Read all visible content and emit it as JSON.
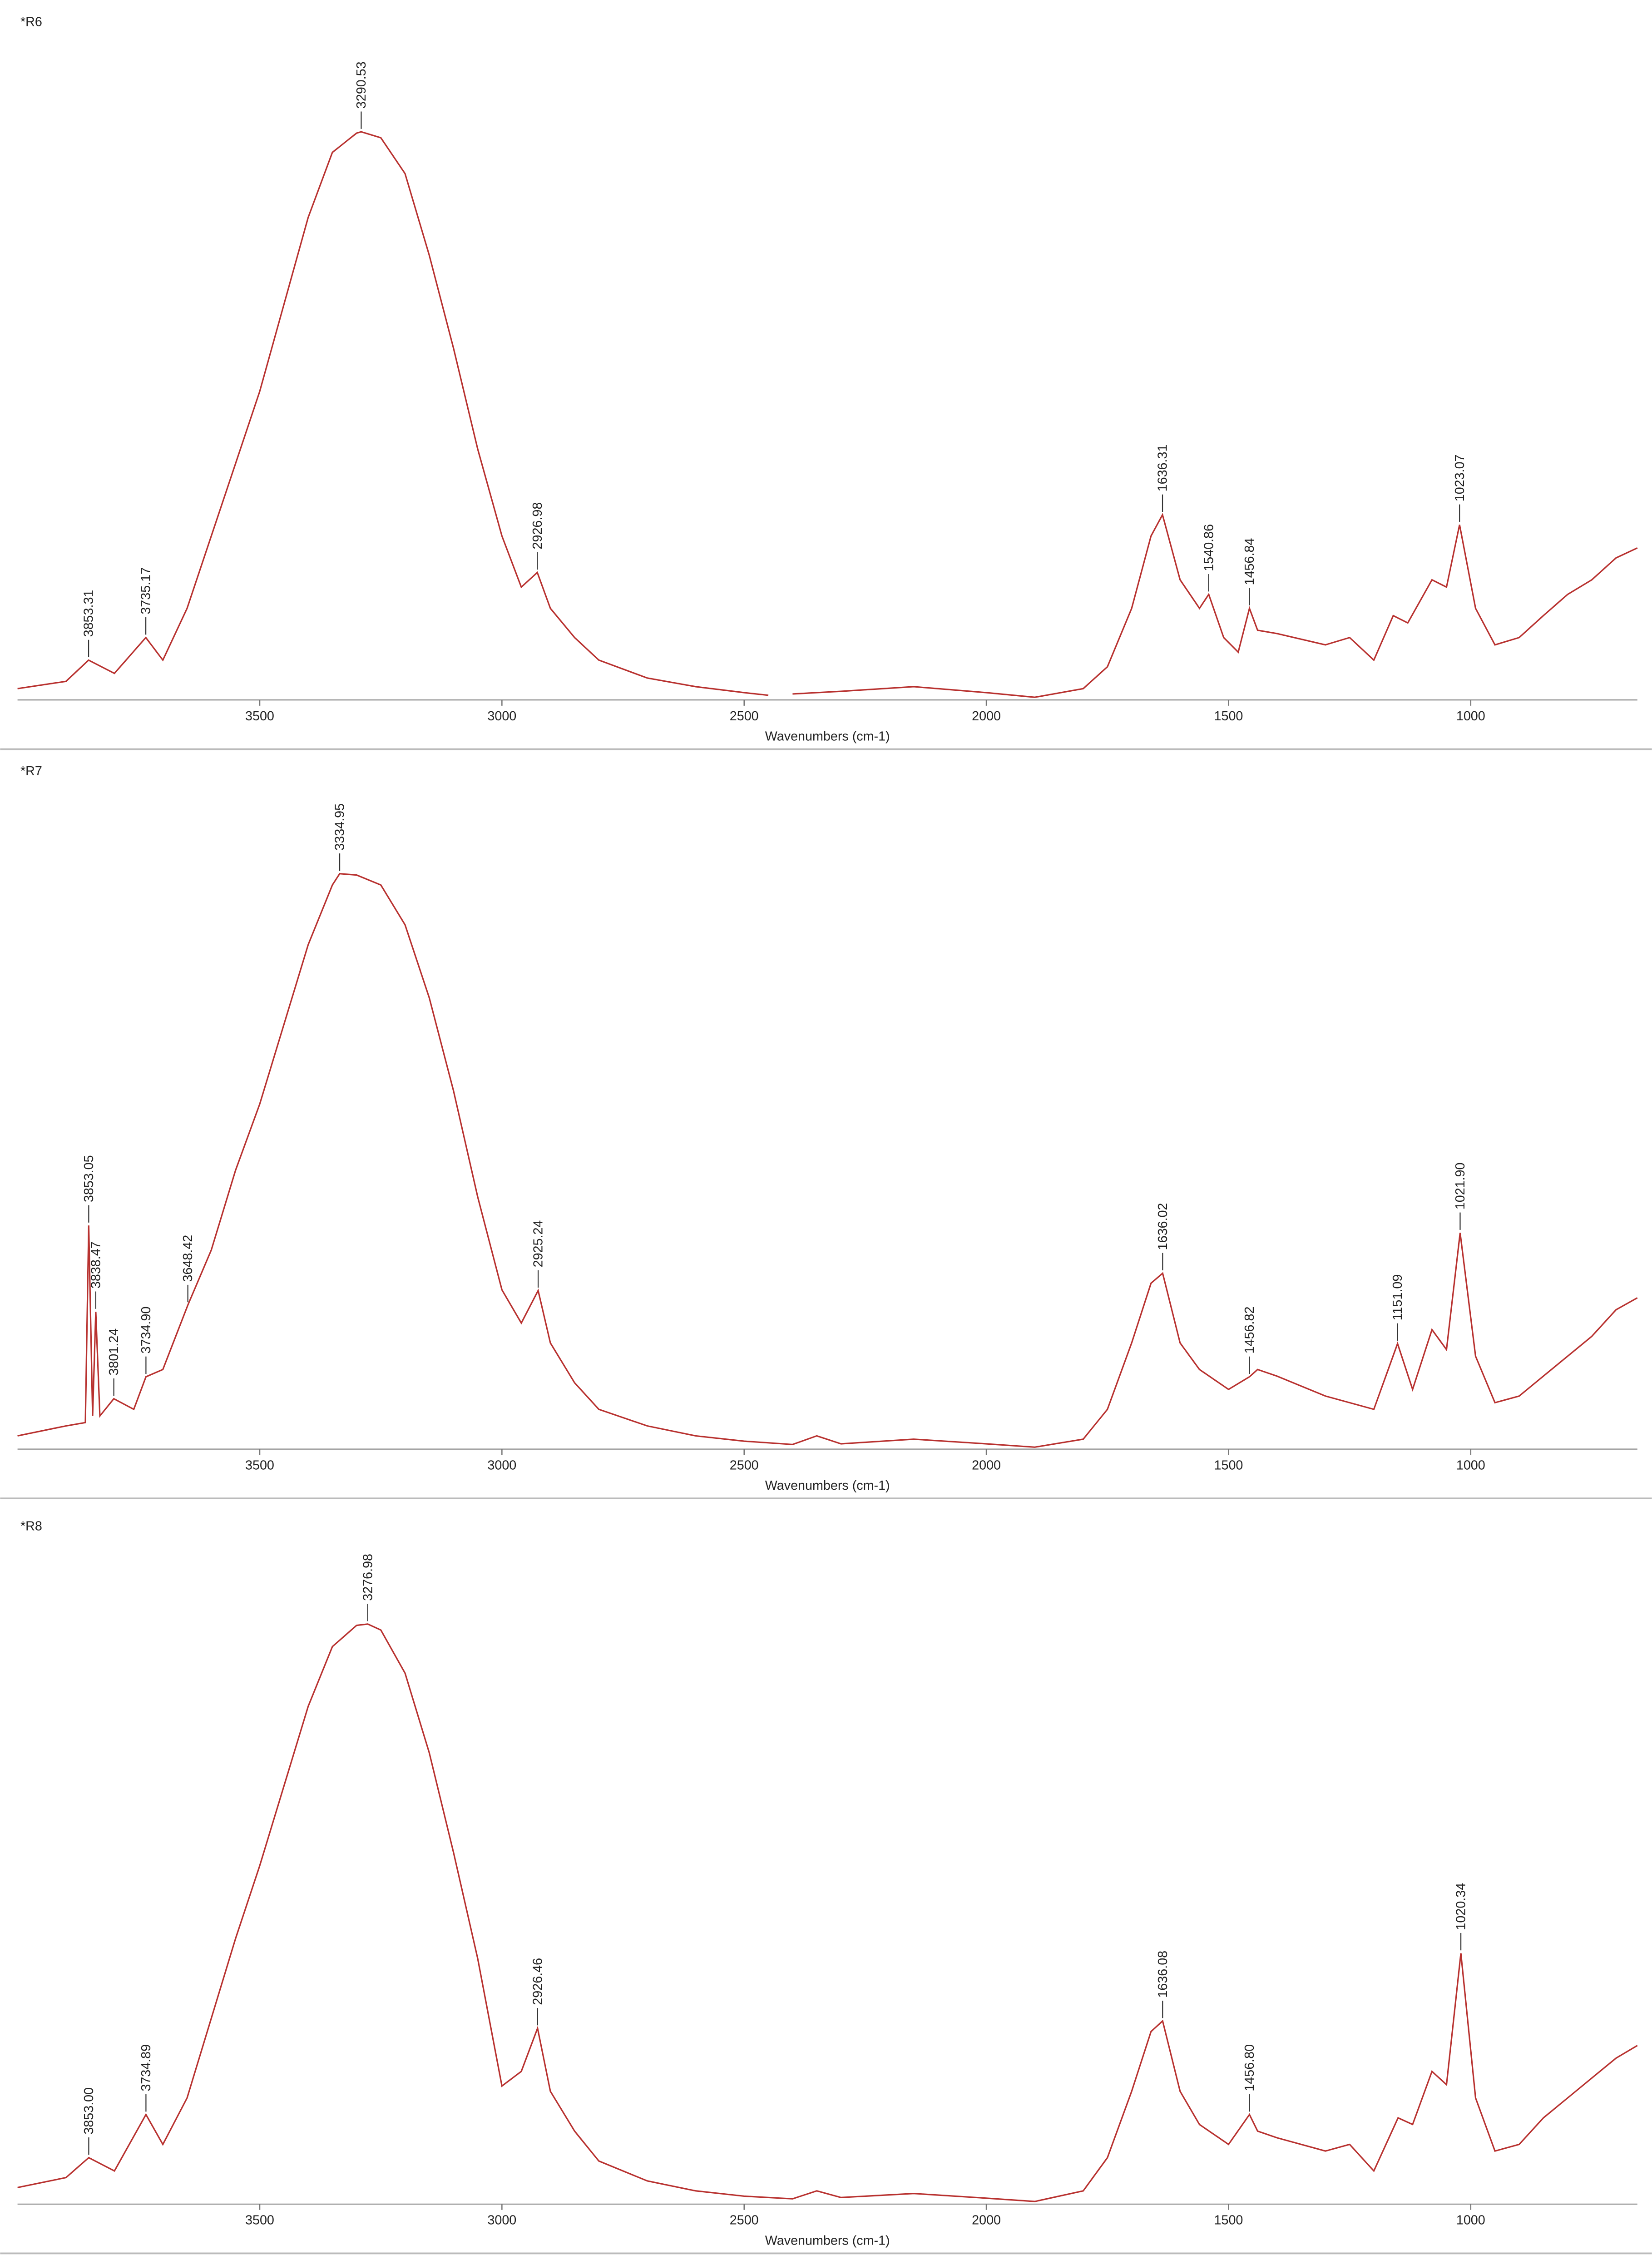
{
  "chart_data": [
    {
      "type": "line",
      "title": "*R6",
      "x_label": "Wavenumbers (cm-1)",
      "color": "#b8312f",
      "xlim": [
        4000,
        656
      ],
      "ylim": [
        0,
        100
      ],
      "xticks": [
        3500,
        3000,
        2500,
        2000,
        1500,
        1000
      ],
      "x": [
        4000,
        3900,
        3853.31,
        3800,
        3735.17,
        3700,
        3650,
        3600,
        3550,
        3500,
        3450,
        3400,
        3350,
        3300,
        3290.53,
        3250,
        3200,
        3150,
        3100,
        3050,
        3000,
        2960,
        2926.98,
        2900,
        2850,
        2800,
        2700,
        2600,
        2500,
        2450,
        2430,
        2400,
        2300,
        2150,
        2000,
        1900,
        1800,
        1750,
        1700,
        1660,
        1636.31,
        1600,
        1560,
        1540.86,
        1510,
        1480,
        1456.84,
        1440,
        1400,
        1300,
        1250,
        1200,
        1160,
        1130,
        1080,
        1050,
        1023.07,
        990,
        950,
        900,
        850,
        800,
        750,
        700,
        656
      ],
      "values": [
        1.7,
        2.8,
        6.0,
        4.0,
        9.4,
        6.0,
        13.8,
        24.7,
        35.6,
        46.5,
        59.6,
        72.7,
        82.5,
        85.4,
        85.6,
        84.7,
        79.3,
        67.0,
        53.0,
        37.8,
        24.7,
        17.0,
        19.2,
        13.8,
        9.4,
        6.0,
        3.3,
        2.0,
        1.1,
        0.7,
        null,
        0.9,
        1.3,
        2.0,
        1.1,
        0.4,
        1.7,
        5.0,
        13.8,
        24.7,
        27.9,
        18.1,
        13.8,
        15.9,
        9.4,
        7.2,
        13.8,
        10.5,
        10.0,
        8.3,
        9.4,
        6.0,
        12.7,
        11.6,
        18.1,
        17.0,
        26.4,
        13.8,
        8.3,
        9.4,
        12.7,
        15.9,
        18.1,
        21.4,
        22.9
      ],
      "peaks": [
        3853.31,
        3735.17,
        3290.53,
        2926.98,
        1636.31,
        1540.86,
        1456.84,
        1023.07
      ]
    },
    {
      "type": "line",
      "title": "*R7",
      "x_label": "Wavenumbers (cm-1)",
      "color": "#b8312f",
      "xlim": [
        4000,
        656
      ],
      "ylim": [
        0,
        100
      ],
      "xticks": [
        3500,
        3000,
        2500,
        2000,
        1500,
        1000
      ],
      "x": [
        4000,
        3900,
        3860,
        3853.05,
        3845,
        3838.47,
        3830,
        3801.24,
        3760,
        3734.9,
        3700,
        3648.42,
        3600,
        3550,
        3500,
        3450,
        3400,
        3350,
        3334.95,
        3300,
        3250,
        3200,
        3150,
        3100,
        3050,
        3000,
        2960,
        2925.24,
        2900,
        2850,
        2800,
        2700,
        2600,
        2500,
        2400,
        2350,
        2300,
        2150,
        2000,
        1900,
        1800,
        1750,
        1700,
        1660,
        1636.02,
        1600,
        1560,
        1500,
        1456.82,
        1440,
        1400,
        1300,
        1250,
        1200,
        1151.09,
        1120,
        1080,
        1050,
        1021.9,
        990,
        950,
        900,
        850,
        800,
        750,
        700,
        656
      ],
      "values": [
        2.0,
        3.5,
        4.0,
        33.7,
        5.0,
        20.7,
        5.0,
        7.6,
        6.0,
        10.9,
        12.0,
        21.7,
        30.0,
        42.0,
        52.0,
        64.0,
        76.0,
        85.0,
        86.7,
        86.5,
        85.0,
        79.0,
        68.0,
        54.0,
        38.0,
        24.0,
        19.0,
        23.9,
        16.0,
        10.0,
        6.0,
        3.5,
        2.0,
        1.2,
        0.7,
        2.0,
        0.8,
        1.5,
        0.8,
        0.3,
        1.5,
        6.0,
        16.0,
        25.0,
        26.5,
        16.0,
        12.0,
        9.0,
        10.9,
        12.0,
        11.0,
        8.0,
        7.0,
        6.0,
        15.9,
        9.0,
        18.0,
        15.0,
        32.6,
        14.0,
        7.0,
        8.0,
        11.0,
        14.0,
        17.0,
        21.0,
        22.8
      ],
      "peaks": [
        {
          "value": 3853.05,
          "label": "3853.05"
        },
        3838.47,
        3801.24,
        {
          "value": 3734.9,
          "label": "3734.90"
        },
        3648.42,
        3334.95,
        2925.24,
        1636.02,
        1456.82,
        1151.09,
        {
          "value": 1021.9,
          "label": "1021.90"
        }
      ]
    },
    {
      "type": "line",
      "title": "*R8",
      "x_label": "Wavenumbers (cm-1)",
      "color": "#b8312f",
      "xlim": [
        4000,
        656
      ],
      "ylim": [
        0,
        100
      ],
      "xticks": [
        3500,
        3000,
        2500,
        2000,
        1500,
        1000
      ],
      "x": [
        4000,
        3900,
        3853,
        3800,
        3734.89,
        3700,
        3650,
        3600,
        3550,
        3500,
        3450,
        3400,
        3350,
        3300,
        3276.98,
        3250,
        3200,
        3150,
        3100,
        3050,
        3000,
        2960,
        2926.46,
        2900,
        2850,
        2800,
        2700,
        2600,
        2500,
        2400,
        2350,
        2300,
        2150,
        2000,
        1900,
        1800,
        1750,
        1700,
        1660,
        1636.08,
        1600,
        1560,
        1500,
        1456.8,
        1440,
        1400,
        1300,
        1250,
        1200,
        1150,
        1120,
        1080,
        1050,
        1020.34,
        990,
        950,
        900,
        850,
        800,
        750,
        700,
        656
      ],
      "values": [
        2.5,
        4.0,
        7.0,
        5.0,
        13.5,
        9.0,
        16.0,
        28.0,
        40.0,
        51.0,
        63.0,
        75.0,
        84.0,
        87.2,
        87.4,
        86.5,
        80.0,
        68.0,
        53.0,
        37.0,
        17.8,
        20.0,
        26.5,
        17.0,
        11.0,
        6.5,
        3.5,
        2.0,
        1.2,
        0.8,
        2.0,
        1.0,
        1.6,
        0.9,
        0.4,
        2.0,
        7.0,
        17.0,
        26.0,
        27.6,
        17.0,
        12.0,
        9.0,
        13.5,
        11.0,
        10.0,
        8.0,
        9.0,
        5.0,
        13.0,
        12.0,
        20.0,
        18.0,
        37.8,
        16.0,
        8.0,
        9.0,
        13.0,
        16.0,
        19.0,
        22.0,
        23.9
      ],
      "peaks": [
        {
          "value": 3853,
          "label": "3853.00"
        },
        3734.89,
        3276.98,
        2926.46,
        1636.08,
        {
          "value": 1456.8,
          "label": "1456.80"
        },
        1020.34
      ]
    }
  ]
}
